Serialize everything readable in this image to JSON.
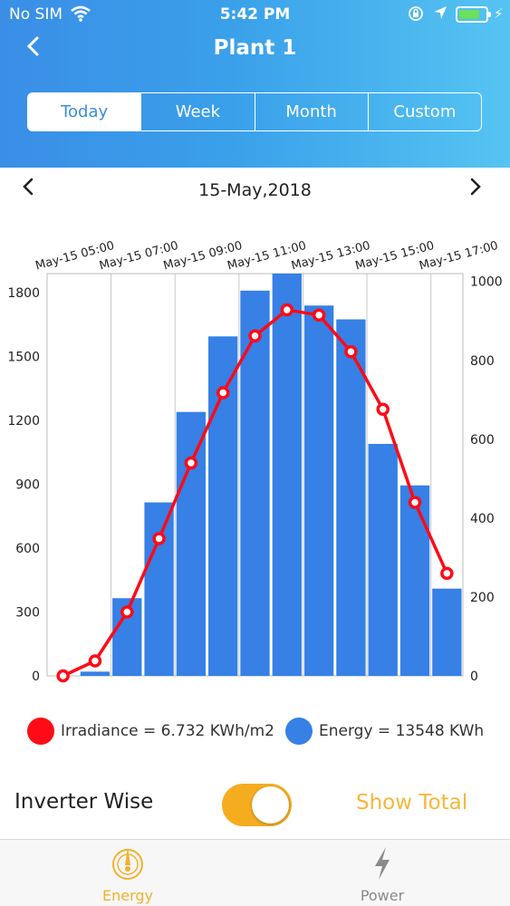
{
  "status_bar": {
    "carrier": "No SIM",
    "time": "5:42 PM"
  },
  "header": {
    "title": "Plant 1"
  },
  "tabs": [
    {
      "label": "Today",
      "active": true
    },
    {
      "label": "Week",
      "active": false
    },
    {
      "label": "Month",
      "active": false
    },
    {
      "label": "Custom",
      "active": false
    }
  ],
  "date_nav": {
    "date": "15-May,2018"
  },
  "chart_data": {
    "type": "bar",
    "x_tick_labels": [
      "May-15 05:00",
      "May-15 07:00",
      "May-15 09:00",
      "May-15 11:00",
      "May-15 13:00",
      "May-15 15:00",
      "May-15 17:00"
    ],
    "left_ticks": [
      0,
      300,
      600,
      900,
      1200,
      1500,
      1800
    ],
    "right_ticks": [
      0,
      200,
      400,
      600,
      800,
      1000
    ],
    "ylim_left": [
      0,
      1890
    ],
    "ylim_right": [
      0,
      1020
    ],
    "grid": true,
    "series": [
      {
        "axis": "left",
        "kind": "bar",
        "color": "#3680e6",
        "values": [
          0,
          20,
          365,
          815,
          1240,
          1595,
          1810,
          1890,
          1740,
          1675,
          1090,
          895,
          410
        ]
      },
      {
        "axis": "right",
        "kind": "line",
        "color": "#ff0a17",
        "values": [
          0,
          38,
          162,
          348,
          540,
          718,
          862,
          928,
          915,
          822,
          676,
          440,
          260
        ]
      }
    ]
  },
  "legend": {
    "irradiance": "Irradiance = 6.732 KWh/m2",
    "energy": "Energy = 13548 KWh",
    "irradiance_color": "#ff0a17",
    "energy_color": "#3680e6"
  },
  "controls": {
    "inverter_label": "Inverter Wise",
    "toggle_on": true,
    "show_total": "Show Total"
  },
  "tabbar": {
    "energy": "Energy",
    "power": "Power"
  }
}
